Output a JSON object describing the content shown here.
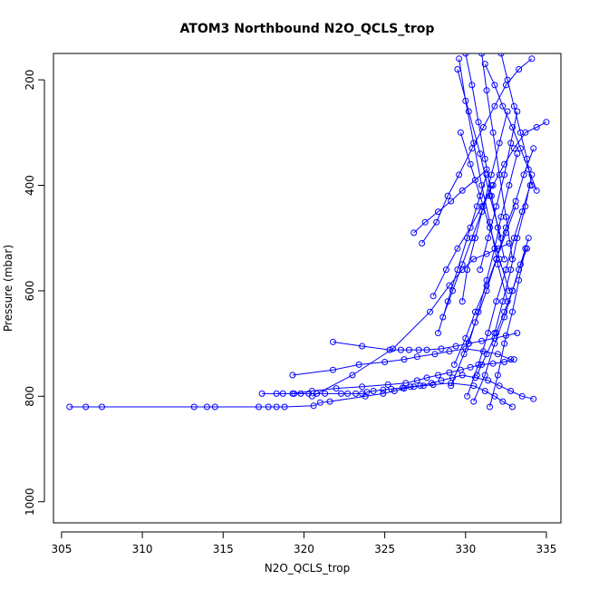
{
  "chart_data": {
    "type": "scatter",
    "title": "ATOM3 Northbound N2O_QCLS_trop",
    "xlabel": "N2O_QCLS_trop",
    "ylabel": "Pressure (mbar)",
    "xlim": [
      304.5,
      335.9
    ],
    "ylim": [
      1040,
      150
    ],
    "y_inverted": true,
    "xticks": [
      305,
      310,
      315,
      320,
      325,
      330,
      335
    ],
    "yticks": [
      200,
      400,
      600,
      800,
      1000
    ],
    "grid": false,
    "legend": "none",
    "color": "#0000ff",
    "marker": "open-circle",
    "connected": true,
    "series": [
      {
        "x": [
          305.5,
          306.5,
          307.5,
          313.2,
          314.0,
          314.5,
          317.2,
          317.8,
          318.3,
          318.8,
          320.6,
          321.0,
          321.6,
          323.8,
          324.9,
          325.6,
          326.2,
          326.8,
          327.4,
          328.0,
          329.1,
          330.5,
          331.2,
          331.8,
          332.3,
          332.9
        ],
        "y": [
          820,
          820,
          820,
          820,
          820,
          820,
          820,
          820,
          820,
          820,
          818,
          812,
          810,
          800,
          795,
          790,
          785,
          782,
          780,
          778,
          775,
          780,
          790,
          800,
          810,
          820
        ]
      },
      {
        "x": [
          317.4,
          318.3,
          318.7,
          319.4,
          319.8,
          320.3,
          320.8,
          321.3,
          322.3,
          322.7,
          323.2,
          323.6,
          323.9,
          324.3,
          324.9,
          325.4,
          326.1,
          326.6,
          327.2,
          327.9,
          328.5,
          329.2,
          329.8,
          330.6,
          331.4,
          332.1,
          332.8,
          333.5,
          334.2
        ],
        "y": [
          795,
          795,
          795,
          795,
          795,
          795,
          795,
          795,
          795,
          795,
          795,
          795,
          792,
          790,
          788,
          786,
          784,
          782,
          780,
          775,
          770,
          765,
          760,
          765,
          770,
          780,
          790,
          800,
          805
        ]
      },
      {
        "x": [
          319.3,
          320.5,
          322.0,
          323.6,
          325.2,
          326.3,
          327.0,
          327.6,
          328.3,
          329.0,
          329.7,
          330.3,
          331.0,
          331.7,
          332.4,
          333.0
        ],
        "y": [
          795,
          790,
          785,
          782,
          778,
          775,
          770,
          765,
          760,
          755,
          750,
          745,
          740,
          738,
          735,
          730
        ]
      },
      {
        "x": [
          319.3,
          321.8,
          323.4,
          325.0,
          326.2,
          327.0,
          328.1,
          329.0,
          330.0,
          331.1,
          332.0,
          332.8
        ],
        "y": [
          760,
          750,
          740,
          735,
          730,
          725,
          720,
          715,
          710,
          715,
          720,
          730
        ]
      },
      {
        "x": [
          321.8,
          323.6,
          325.3,
          326.0,
          326.5,
          327.1,
          327.6,
          328.5,
          329.4,
          330.2,
          331.0,
          331.8,
          332.5,
          333.2
        ],
        "y": [
          697,
          705,
          712,
          712,
          712,
          712,
          712,
          710,
          705,
          700,
          695,
          690,
          685,
          680
        ],
        "note": ""
      },
      {
        "x": [
          320.5,
          323.0,
          325.5,
          327.8,
          329.0,
          329.8,
          330.5,
          331.3,
          332.0,
          332.7
        ],
        "y": [
          800,
          760,
          710,
          640,
          590,
          560,
          540,
          530,
          520,
          510
        ]
      },
      {
        "x": [
          327.3,
          328.2,
          328.9,
          329.6,
          330.4,
          331.1,
          331.8,
          332.5,
          333.3,
          334.1
        ],
        "y": [
          510,
          470,
          420,
          380,
          330,
          290,
          250,
          210,
          180,
          160
        ]
      },
      {
        "x": [
          328.0,
          328.8,
          329.5,
          330.3,
          331.0,
          331.7,
          332.4,
          333.0,
          333.7,
          334.4,
          335.0
        ],
        "y": [
          610,
          560,
          520,
          480,
          440,
          400,
          360,
          330,
          300,
          290,
          280
        ]
      },
      {
        "x": [
          329.1,
          329.9,
          330.6,
          331.3,
          331.9,
          332.5,
          333.1,
          333.6,
          334.2
        ],
        "y": [
          780,
          720,
          660,
          600,
          540,
          480,
          430,
          380,
          330
        ]
      },
      {
        "x": [
          330.1,
          330.8,
          331.4,
          331.9,
          332.5,
          333.0,
          333.5,
          334.0
        ],
        "y": [
          800,
          740,
          680,
          620,
          560,
          500,
          450,
          400
        ]
      },
      {
        "x": [
          330.5,
          331.2,
          331.8,
          332.4,
          332.9,
          333.4,
          333.9
        ],
        "y": [
          810,
          760,
          700,
          650,
          600,
          550,
          500
        ]
      },
      {
        "x": [
          330.0,
          330.4,
          330.8,
          331.2,
          331.6,
          332.0,
          332.4
        ],
        "y": [
          150,
          210,
          280,
          350,
          420,
          480,
          540
        ]
      },
      {
        "x": [
          329.6,
          330.0,
          330.5,
          331.0,
          331.5,
          332.0,
          332.6
        ],
        "y": [
          160,
          240,
          320,
          400,
          470,
          550,
          620
        ]
      },
      {
        "x": [
          331.0,
          331.3,
          331.7,
          332.1,
          332.5,
          332.9
        ],
        "y": [
          150,
          220,
          300,
          380,
          460,
          540
        ]
      },
      {
        "x": [
          329.8,
          330.1,
          330.6,
          331.1,
          331.6,
          332.1,
          332.6
        ],
        "y": [
          620,
          560,
          500,
          440,
          380,
          320,
          260
        ]
      },
      {
        "x": [
          328.6,
          329.2,
          329.8,
          330.4,
          331.0,
          331.6
        ],
        "y": [
          650,
          600,
          550,
          500,
          450,
          400
        ]
      },
      {
        "x": [
          330.2,
          330.8,
          331.3,
          331.8,
          332.2,
          332.7,
          333.2
        ],
        "y": [
          700,
          640,
          580,
          520,
          460,
          400,
          340
        ]
      },
      {
        "x": [
          331.5,
          332.0,
          332.4,
          332.9,
          333.3,
          333.7
        ],
        "y": [
          820,
          760,
          700,
          640,
          580,
          520
        ]
      },
      {
        "x": [
          329.3,
          330.0,
          330.6,
          331.3,
          331.9,
          332.5,
          333.1
        ],
        "y": [
          740,
          690,
          640,
          590,
          540,
          490,
          440
        ]
      },
      {
        "x": [
          328.3,
          328.9,
          329.5,
          330.1,
          330.7,
          331.3
        ],
        "y": [
          680,
          620,
          560,
          500,
          440,
          380
        ]
      },
      {
        "x": [
          329.5,
          330.2,
          330.9,
          331.5,
          332.2
        ],
        "y": [
          180,
          260,
          340,
          420,
          500
        ]
      },
      {
        "x": [
          332.2,
          332.6,
          333.0,
          333.4,
          333.8,
          334.1
        ],
        "y": [
          150,
          200,
          250,
          300,
          350,
          400
        ]
      },
      {
        "x": [
          330.7,
          331.3,
          331.9,
          332.4,
          332.9,
          333.3,
          333.8
        ],
        "y": [
          760,
          720,
          680,
          640,
          600,
          560,
          520
        ]
      },
      {
        "x": [
          331.8,
          332.3,
          332.8,
          333.2,
          333.7,
          334.1
        ],
        "y": [
          680,
          620,
          560,
          500,
          440,
          380
        ]
      },
      {
        "x": [
          326.8,
          327.5,
          328.3,
          329.1,
          329.8,
          330.6,
          331.3
        ],
        "y": [
          490,
          470,
          450,
          430,
          410,
          390,
          370
        ]
      },
      {
        "x": [
          330.9,
          331.4,
          331.9,
          332.4,
          332.8,
          333.2
        ],
        "y": [
          560,
          500,
          440,
          380,
          320,
          260
        ]
      },
      {
        "x": [
          329.7,
          330.3,
          330.9,
          331.5,
          332.1,
          332.7
        ],
        "y": [
          300,
          360,
          420,
          480,
          540,
          600
        ]
      },
      {
        "x": [
          331.2,
          331.8,
          332.3,
          332.9,
          333.4,
          333.9,
          334.4
        ],
        "y": [
          170,
          210,
          250,
          290,
          330,
          370,
          410
        ]
      }
    ]
  }
}
